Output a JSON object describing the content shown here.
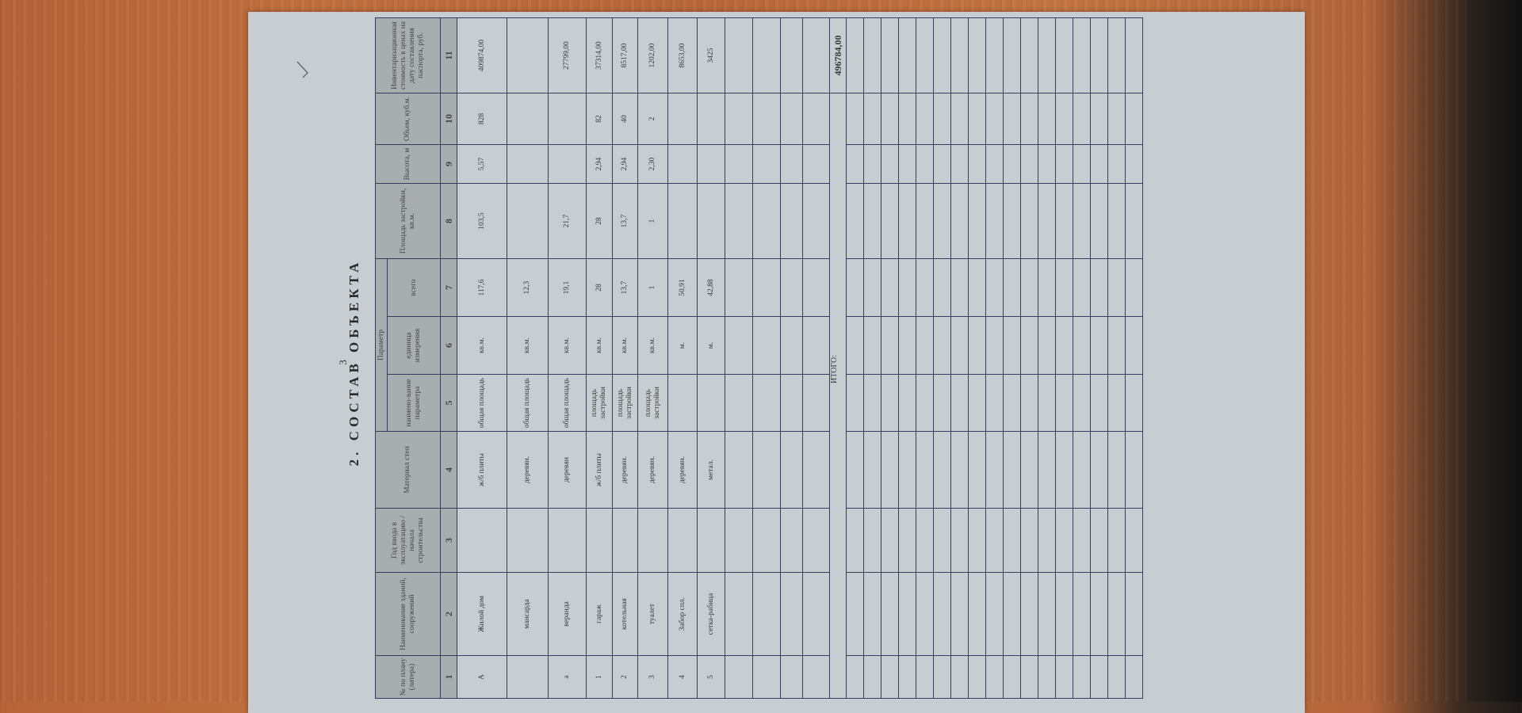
{
  "document": {
    "page_number": "3",
    "title": "2. СОСТАВ ОБЪЕКТА",
    "header": {
      "col1": "№ по плану (литера)",
      "col2": "Наименование зданий, сооружений",
      "col3": "Год ввода в эксплуатацию / начала строительства",
      "col4": "Материал стен",
      "param_group": "Параметр",
      "col5": "наимено-вание параметра",
      "col6": "единица измерения",
      "col7": "всего",
      "col8": "Площадь застройки, кв.м.",
      "col9": "Высота, м",
      "col10": "Объем, куб.м.",
      "col11": "Инвентаризационная стоимость в ценах на дату составления паспорта, руб."
    },
    "column_numbers": [
      "1",
      "2",
      "3",
      "4",
      "5",
      "6",
      "7",
      "8",
      "9",
      "10",
      "11"
    ],
    "rows": [
      [
        "А",
        "Жилой дом",
        "",
        "ж/б плиты",
        "общая площадь",
        "кв.м.",
        "117,6",
        "103,5",
        "5,57",
        "828",
        "409874,00"
      ],
      [
        "",
        "мансарда",
        "",
        "деревян.",
        "общая площадь",
        "кв.м.",
        "12,3",
        "",
        "",
        "",
        ""
      ],
      [
        "а",
        "веранда",
        "",
        "деревян",
        "общая площадь",
        "кв.м.",
        "19,1",
        "21,7",
        "",
        "",
        "27799,00"
      ],
      [
        "1",
        "гараж",
        "",
        "ж/б плиты",
        "площадь застройки",
        "кв.м.",
        "28",
        "28",
        "2,94",
        "82",
        "37314,00"
      ],
      [
        "2",
        "котельная",
        "",
        "деревян.",
        "площадь застройки",
        "кв.м.",
        "13,7",
        "13,7",
        "2,94",
        "40",
        "8517,00"
      ],
      [
        "3",
        "туалет",
        "",
        "деревян.",
        "площадь застройки",
        "кв.м.",
        "1",
        "1",
        "2,30",
        "2",
        "1202,00"
      ],
      [
        "4",
        "Забор спл.",
        "",
        "деревян.",
        "",
        "м.",
        "50,91",
        "",
        "",
        "",
        "8653,00"
      ],
      [
        "5",
        "сетка-рабица",
        "",
        "метал.",
        "",
        "м.",
        "42,88",
        "",
        "",
        "",
        "3425"
      ]
    ],
    "total_label": "ИТОГО:",
    "total_value": "496784,00"
  },
  "colors": {
    "paper": "#c7cdd0",
    "header": "#a8adb0",
    "grid": "#3a3a5e",
    "desk": "#b7643a"
  }
}
